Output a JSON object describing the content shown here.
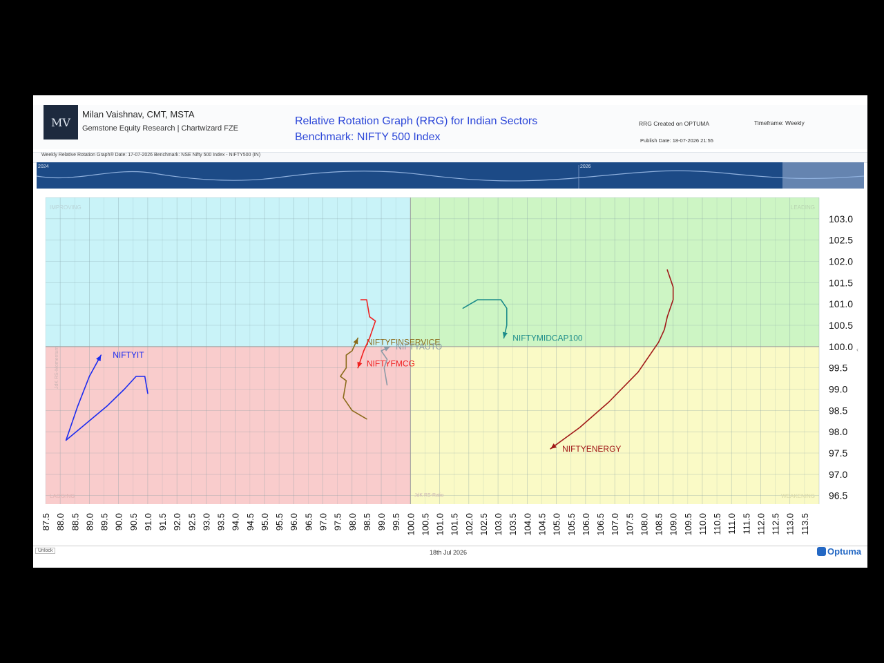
{
  "header": {
    "author": "Milan Vaishnav, CMT, MSTA",
    "firm": "Gemstone Equity Research | Chartwizard FZE",
    "title_line1": "Relative Rotation Graph (RRG) for Indian Sectors",
    "title_line2": "Benchmark: NIFTY 500 Index",
    "created_on": "RRG Created on OPTUMA",
    "publish_date": "Publish Date: 18-07-2026 21:55",
    "timeframe": "Timeframe: Weekly"
  },
  "info_bar": "Weekly Relative Rotation Graph®    Date: 17-07-2026  Benchmark: NSE Nifty 500 Index - NIFTY500 (IN)",
  "navigator": {
    "year_labels": [
      "2024",
      "2026"
    ]
  },
  "footer": {
    "date": "18th Jul 2026",
    "left_label": "Unlock",
    "brand": "Optuma"
  },
  "colors": {
    "improving": "#c9f3f8",
    "leading": "#cdf5c4",
    "lagging": "#f9cccc",
    "weakening": "#fafac6",
    "navigator": "#1c4a86"
  },
  "chart_data": {
    "type": "scatter",
    "xlim": [
      87.5,
      114.0
    ],
    "ylim": [
      96.3,
      103.5
    ],
    "center": [
      100.0,
      100.0
    ],
    "x_ticks": [
      "87.5",
      "88.0",
      "88.5",
      "89.0",
      "89.5",
      "90.0",
      "90.5",
      "91.0",
      "91.5",
      "92.0",
      "92.5",
      "93.0",
      "93.5",
      "94.0",
      "94.5",
      "95.0",
      "95.5",
      "96.0",
      "96.5",
      "97.0",
      "97.5",
      "98.0",
      "98.5",
      "99.0",
      "99.5",
      "100.0",
      "100.5",
      "101.0",
      "101.5",
      "102.0",
      "102.5",
      "103.0",
      "103.5",
      "104.0",
      "104.5",
      "105.0",
      "105.5",
      "106.0",
      "106.5",
      "107.0",
      "107.5",
      "108.0",
      "108.5",
      "109.0",
      "109.5",
      "110.0",
      "110.5",
      "111.0",
      "111.5",
      "112.0",
      "112.5",
      "113.0",
      "113.5"
    ],
    "y_ticks": [
      "103.0",
      "102.5",
      "102.0",
      "101.5",
      "101.0",
      "100.5",
      "100.0",
      "99.5",
      "99.0",
      "98.5",
      "98.0",
      "97.5",
      "97.0",
      "96.5"
    ],
    "quadrants": {
      "improving": "IMPROVING",
      "leading": "LEADING",
      "lagging": "LAGGING",
      "weakening": "WEAKENING"
    },
    "axis_labels": {
      "x": "JdK RS-Ratio",
      "y": "JdK RS-Momentum"
    },
    "series": [
      {
        "name": "NIFTYIT",
        "color": "#1a2af0",
        "x": [
          91.0,
          90.9,
          90.6,
          90.2,
          89.6,
          88.9,
          88.2,
          88.6,
          89.0,
          89.4
        ],
        "y": [
          98.9,
          99.3,
          99.3,
          99.0,
          98.6,
          98.2,
          97.8,
          98.6,
          99.3,
          99.8
        ],
        "label_x": 89.8,
        "label_y": 99.8
      },
      {
        "name": "NIFTYFINSERVICE",
        "color": "#8a6a1a",
        "x": [
          98.5,
          98.0,
          97.7,
          97.8,
          97.6,
          97.8,
          97.8,
          98.0,
          98.2
        ],
        "y": [
          98.3,
          98.5,
          98.8,
          99.2,
          99.3,
          99.5,
          99.8,
          99.9,
          100.2
        ],
        "label_x": 98.5,
        "label_y": 100.1
      },
      {
        "name": "NIFTYFMCG",
        "color": "#f02020",
        "x": [
          98.3,
          98.5,
          98.6,
          98.8,
          98.6,
          98.4,
          98.2
        ],
        "y": [
          101.1,
          101.1,
          100.7,
          100.6,
          100.2,
          99.9,
          99.5
        ],
        "label_x": 98.5,
        "label_y": 99.6
      },
      {
        "name": "NIFTYAUTO",
        "color": "#8a9aa6",
        "x": [
          99.2,
          99.1,
          99.2,
          99.0,
          99.3
        ],
        "y": [
          99.1,
          99.5,
          99.7,
          99.9,
          100.0
        ],
        "label_x": 99.5,
        "label_y": 100.0
      },
      {
        "name": "NIFTYMIDCAP100",
        "color": "#1d8c8a",
        "x": [
          101.8,
          102.3,
          102.7,
          103.1,
          103.3,
          103.3,
          103.2
        ],
        "y": [
          100.9,
          101.1,
          101.1,
          101.1,
          100.9,
          100.5,
          100.2
        ],
        "label_x": 103.5,
        "label_y": 100.2
      },
      {
        "name": "NIFTYENERGY",
        "color": "#a01818",
        "x": [
          108.8,
          109.0,
          109.0,
          108.8,
          108.7,
          108.5,
          107.8,
          106.8,
          105.8,
          104.8
        ],
        "y": [
          101.8,
          101.4,
          101.1,
          100.7,
          100.4,
          100.1,
          99.4,
          98.7,
          98.1,
          97.6
        ],
        "label_x": 105.2,
        "label_y": 97.6
      }
    ]
  }
}
